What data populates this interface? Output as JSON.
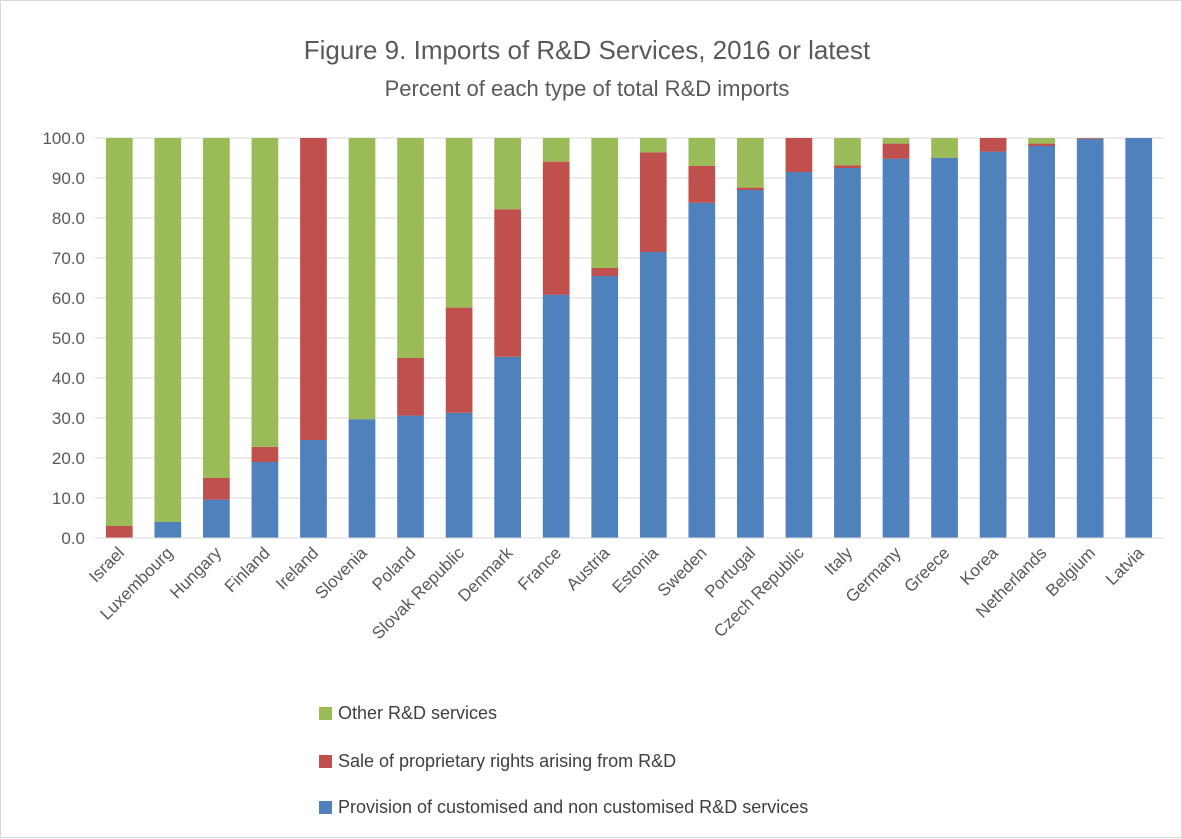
{
  "chart_data": {
    "type": "bar",
    "stacked": true,
    "title": "Figure 9. Imports of R&D Services, 2016 or latest",
    "subtitle": "Percent of each type of total R&D imports",
    "xlabel": "",
    "ylabel": "",
    "ylim": [
      0,
      100
    ],
    "yticks": [
      "0.0",
      "10.0",
      "20.0",
      "30.0",
      "40.0",
      "50.0",
      "60.0",
      "70.0",
      "80.0",
      "90.0",
      "100.0"
    ],
    "grid": true,
    "legend_position": "bottom",
    "categories": [
      "Israel",
      "Luxembourg",
      "Hungary",
      "Finland",
      "Ireland",
      "Slovenia",
      "Poland",
      "Slovak Republic",
      "Denmark",
      "France",
      "Austria",
      "Estonia",
      "Sweden",
      "Portugal",
      "Czech Republic",
      "Italy",
      "Germany",
      "Greece",
      "Korea",
      "Netherlands",
      "Belgium",
      "Latvia"
    ],
    "series": [
      {
        "name": "Provision of customised and non customised R&D services",
        "color": "#4f81bd",
        "values": [
          0.0,
          4.0,
          9.6,
          19.0,
          24.5,
          29.7,
          30.6,
          31.3,
          45.3,
          60.8,
          65.5,
          71.5,
          83.8,
          87.0,
          91.5,
          92.5,
          94.8,
          95.0,
          96.6,
          98.0,
          99.8,
          100.0
        ]
      },
      {
        "name": "Sale of proprietary rights arising from R&D",
        "color": "#c0504d",
        "values": [
          3.0,
          0.0,
          5.4,
          3.8,
          75.5,
          0.0,
          14.4,
          26.3,
          36.9,
          33.3,
          2.0,
          24.9,
          9.2,
          0.6,
          8.5,
          0.7,
          3.8,
          0.0,
          3.4,
          0.6,
          0.2,
          0.0
        ]
      },
      {
        "name": "Other R&D services",
        "color": "#9bbb59",
        "values": [
          97.0,
          96.0,
          85.0,
          77.2,
          0.0,
          70.3,
          55.0,
          42.4,
          17.8,
          5.9,
          32.5,
          3.6,
          7.0,
          12.4,
          0.0,
          6.8,
          1.4,
          5.0,
          0.0,
          1.4,
          0.0,
          0.0
        ]
      }
    ],
    "legend": [
      {
        "name": "Other R&D services",
        "color": "#9bbb59"
      },
      {
        "name": "Sale of proprietary rights arising from R&D",
        "color": "#c0504d"
      },
      {
        "name": "Provision of customised and non customised R&D services",
        "color": "#4f81bd"
      }
    ]
  }
}
